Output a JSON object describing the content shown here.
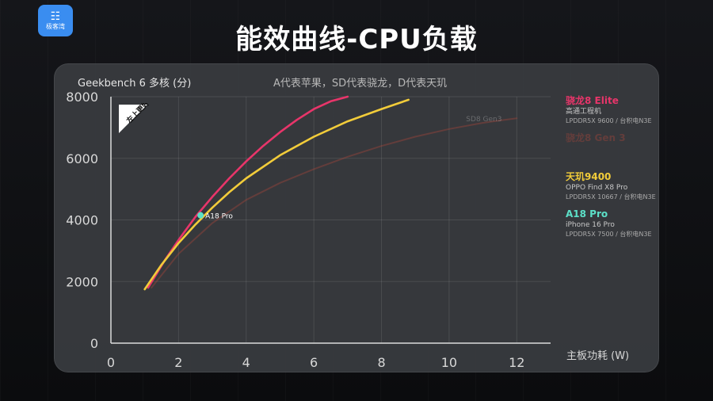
{
  "header": {
    "logo_label": "极客湾",
    "title": "能效曲线-CPU负载"
  },
  "chart_data": {
    "type": "line",
    "title": "Geekbench 6 多核 (分)",
    "subtitle": "A代表苹果，SD代表骁龙，D代表天玑",
    "xlabel": "主板功耗 (W)",
    "ylabel": "Geekbench 6 多核 (分)",
    "xlim": [
      0,
      13
    ],
    "ylim": [
      0,
      8000
    ],
    "xticks": [
      0,
      2,
      4,
      6,
      8,
      10,
      12
    ],
    "yticks": [
      0,
      2000,
      4000,
      6000,
      8000
    ],
    "grid": true,
    "legend_position": "right",
    "corner_badge": "左上更好",
    "series": [
      {
        "name": "骁龙8 Elite",
        "device": "高通工程机",
        "memory": "LPDDR5X 9600 / 台积电N3E",
        "color": "#e8356a",
        "dim": false,
        "x": [
          1.1,
          1.6,
          2.0,
          2.5,
          3.0,
          3.5,
          4.0,
          4.5,
          5.0,
          5.5,
          6.0,
          6.5,
          7.0
        ],
        "y": [
          1800,
          2700,
          3350,
          4100,
          4750,
          5350,
          5900,
          6400,
          6850,
          7250,
          7600,
          7850,
          8000
        ]
      },
      {
        "name": "骁龙8 Gen 3",
        "device": "",
        "memory": "",
        "color": "#b8483a",
        "dim": true,
        "inline_label": "SD8 Gen3",
        "x": [
          1.2,
          2.0,
          3.0,
          4.0,
          5.0,
          6.0,
          7.0,
          8.0,
          9.0,
          10.0,
          11.0,
          12.0
        ],
        "y": [
          1800,
          2900,
          3900,
          4650,
          5200,
          5650,
          6050,
          6400,
          6700,
          6950,
          7150,
          7300
        ]
      },
      {
        "name": "天玑9400",
        "device": "OPPO Find X8 Pro",
        "memory": "LPDDR5X 10667 / 台积电N3E",
        "color": "#f2cc3a",
        "dim": false,
        "x": [
          1.0,
          1.5,
          2.0,
          2.5,
          3.0,
          3.5,
          4.0,
          5.0,
          6.0,
          7.0,
          8.0,
          8.8
        ],
        "y": [
          1750,
          2550,
          3250,
          3850,
          4400,
          4900,
          5350,
          6100,
          6700,
          7200,
          7600,
          7900
        ]
      },
      {
        "name": "A18 Pro",
        "device": "iPhone 16 Pro",
        "memory": "LPDDR5X 7500 / 台积电N3E",
        "color": "#5ce0c8",
        "dim": false,
        "point": {
          "x": 2.65,
          "y": 4150
        },
        "point_label": "A18 Pro"
      }
    ]
  }
}
